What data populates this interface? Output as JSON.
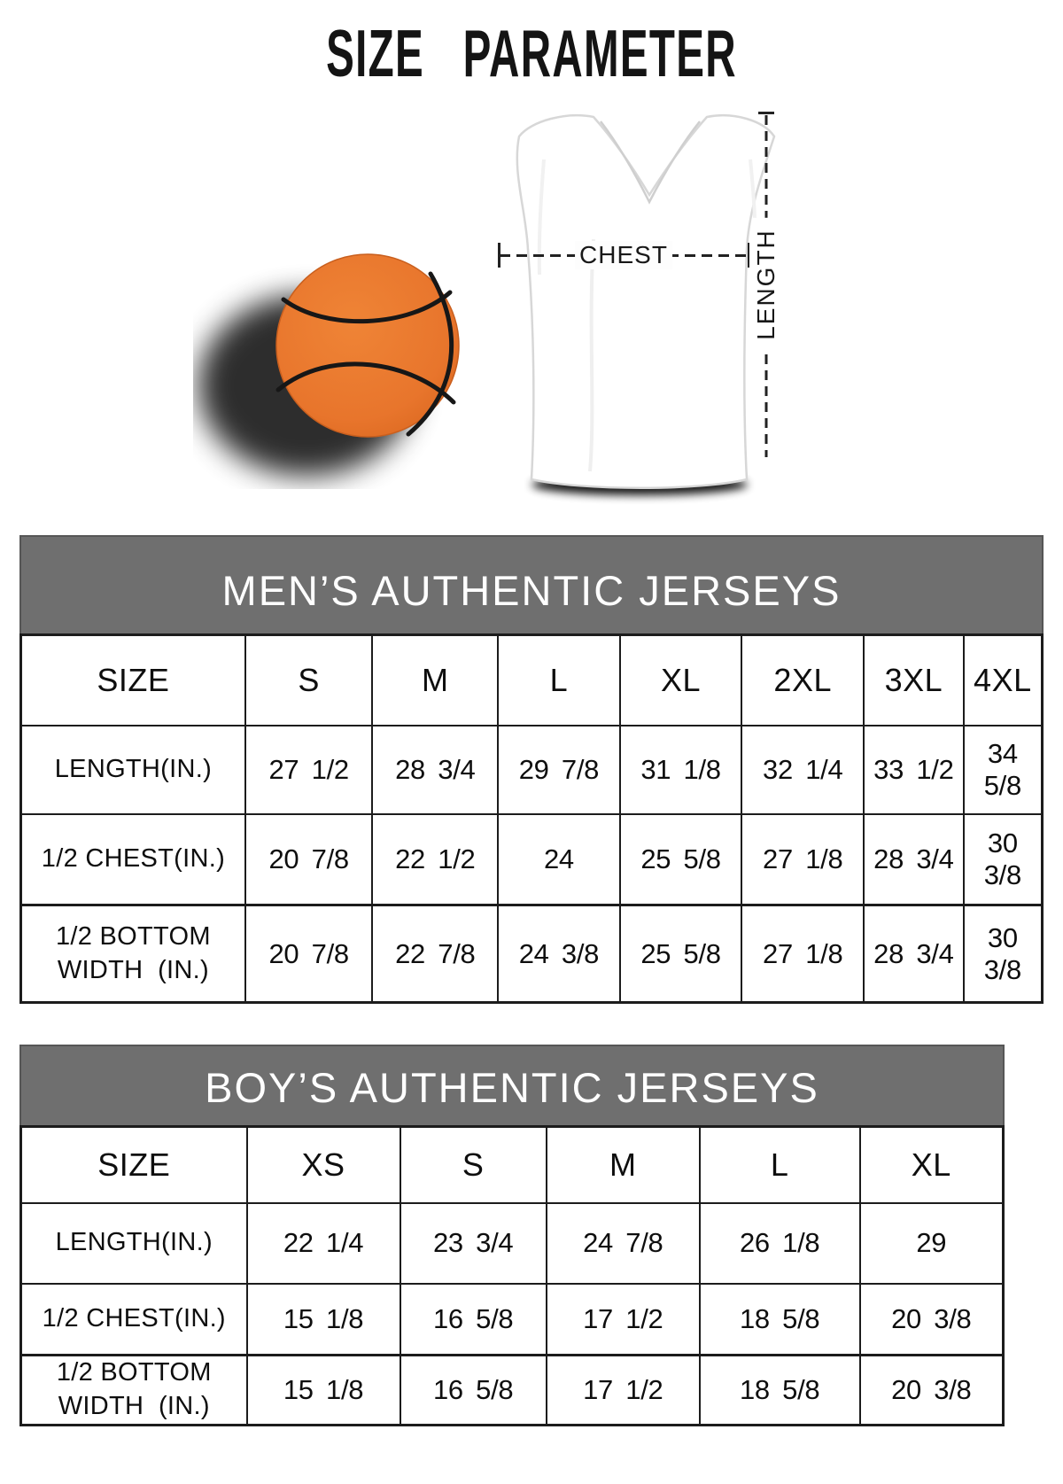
{
  "title": "SIZE PARAMETER",
  "diagram": {
    "chest_label": "CHEST",
    "length_label": "LENGTH"
  },
  "chart_data": [
    {
      "type": "table",
      "title": "MEN’S AUTHENTIC JERSEYS",
      "columns": [
        "SIZE",
        "S",
        "M",
        "L",
        "XL",
        "2XL",
        "3XL",
        "4XL"
      ],
      "rows": [
        {
          "label": "LENGTH(IN.)",
          "values": [
            "27 1/2",
            "28 3/4",
            "29 7/8",
            "31 1/8",
            "32 1/4",
            "33 1/2",
            "34 5/8"
          ]
        },
        {
          "label": "1/2 CHEST(IN.)",
          "values": [
            "20 7/8",
            "22 1/2",
            "24",
            "25 5/8",
            "27 1/8",
            "28 3/4",
            "30 3/8"
          ]
        },
        {
          "label": "1/2 BOTTOM\nWIDTH  (IN.)",
          "values": [
            "20 7/8",
            "22 7/8",
            "24 3/8",
            "25 5/8",
            "27 1/8",
            "28 3/4",
            "30 3/8"
          ]
        }
      ]
    },
    {
      "type": "table",
      "title": "BOY’S AUTHENTIC JERSEYS",
      "columns": [
        "SIZE",
        "XS",
        "S",
        "M",
        "L",
        "XL"
      ],
      "rows": [
        {
          "label": "LENGTH(IN.)",
          "values": [
            "22 1/4",
            "23 3/4",
            "24 7/8",
            "26 1/8",
            "29"
          ]
        },
        {
          "label": "1/2 CHEST(IN.)",
          "values": [
            "15 1/8",
            "16 5/8",
            "17 1/2",
            "18 5/8",
            "20 3/8"
          ]
        },
        {
          "label": "1/2 BOTTOM\nWIDTH  (IN.)",
          "values": [
            "15 1/8",
            "16 5/8",
            "17 1/2",
            "18 5/8",
            "20 3/8"
          ]
        }
      ]
    }
  ],
  "colors": {
    "banner_gray": "#6f6f6f",
    "basketball_orange": "#e8752c",
    "table_border": "#1c1c1c"
  }
}
